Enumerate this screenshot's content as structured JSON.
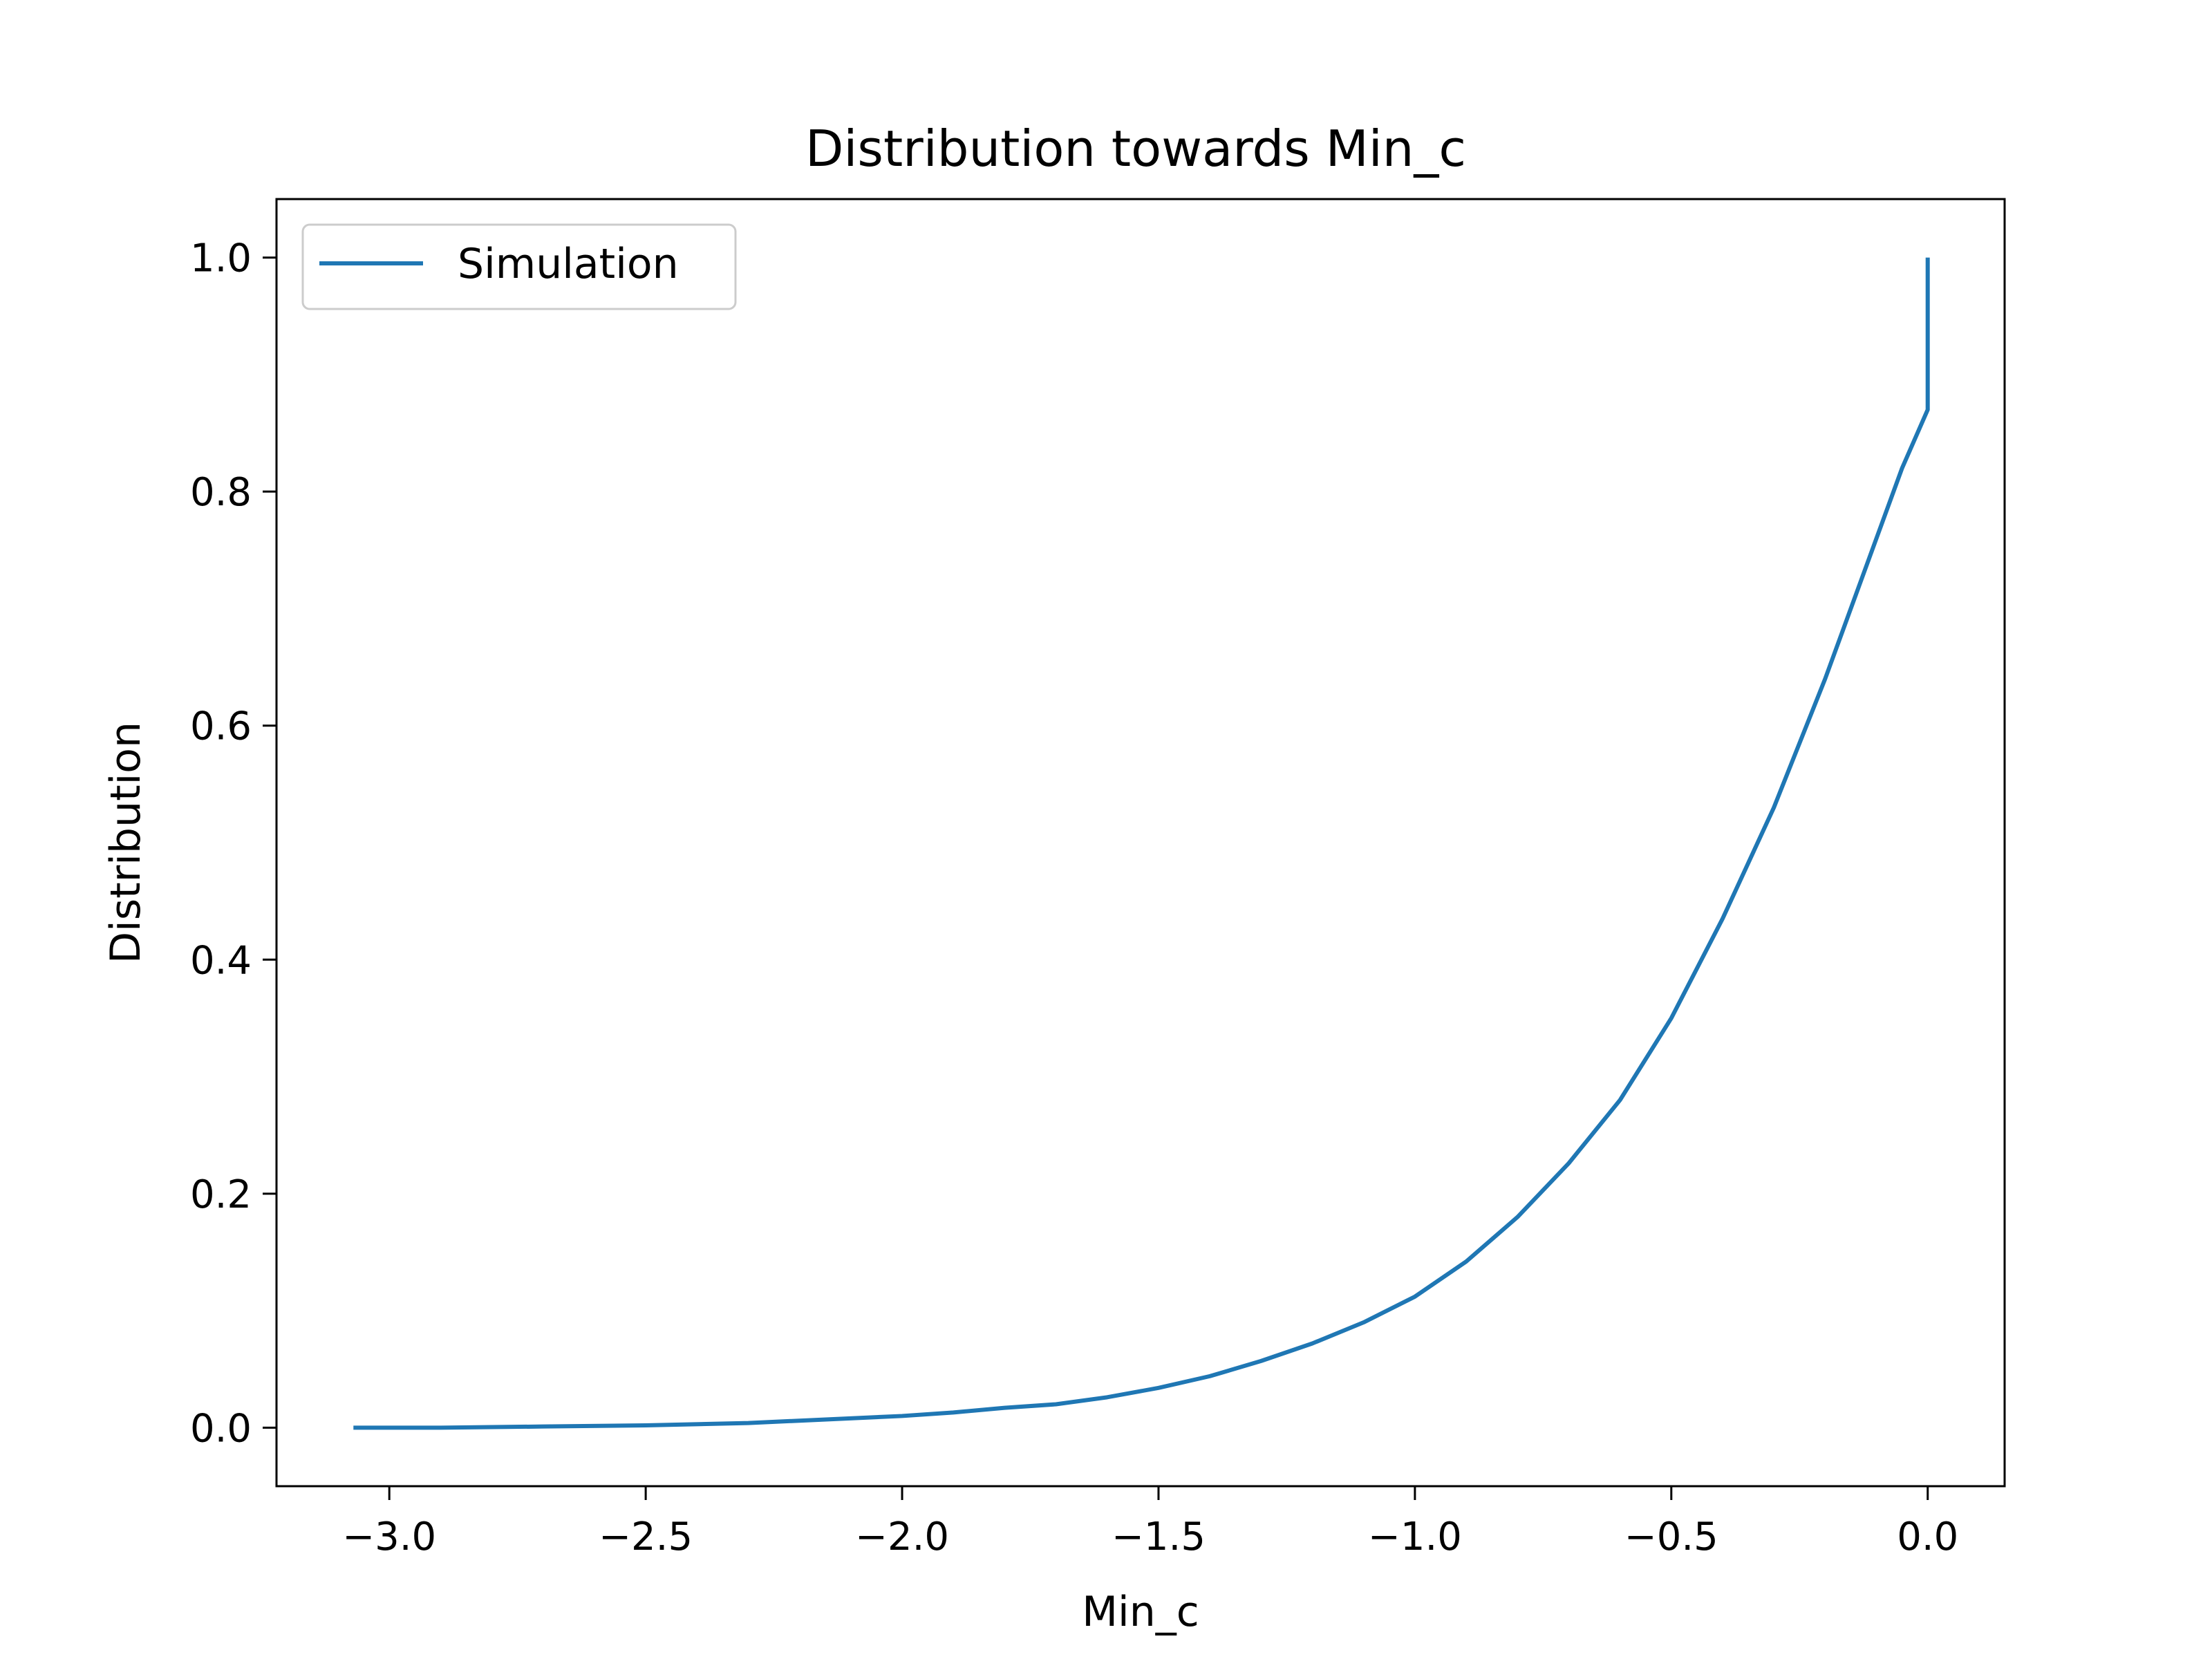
{
  "chart_data": {
    "type": "line",
    "title": "Distribution towards Min_c",
    "xlabel": "Min_c",
    "ylabel": "Distribution",
    "xlim": [
      -3.22,
      0.15
    ],
    "ylim": [
      -0.05,
      1.05
    ],
    "xticks": [
      -3.0,
      -2.5,
      -2.0,
      -1.5,
      -1.0,
      -0.5,
      0.0
    ],
    "xtick_labels": [
      "−3.0",
      "−2.5",
      "−2.0",
      "−1.5",
      "−1.0",
      "−0.5",
      "0.0"
    ],
    "yticks": [
      0.0,
      0.2,
      0.4,
      0.6,
      0.8,
      1.0
    ],
    "ytick_labels": [
      "0.0",
      "0.2",
      "0.4",
      "0.6",
      "0.8",
      "1.0"
    ],
    "grid": false,
    "legend": "upper-left",
    "series": [
      {
        "name": "Simulation",
        "color": "#1f77b4",
        "x": [
          -3.07,
          -2.9,
          -2.7,
          -2.5,
          -2.3,
          -2.2,
          -2.0,
          -1.9,
          -1.8,
          -1.7,
          -1.6,
          -1.5,
          -1.4,
          -1.3,
          -1.2,
          -1.1,
          -1.0,
          -0.9,
          -0.8,
          -0.7,
          -0.6,
          -0.5,
          -0.4,
          -0.3,
          -0.2,
          -0.1,
          -0.05,
          0.0,
          0.0
        ],
        "y": [
          0.0,
          0.0,
          0.001,
          0.002,
          0.004,
          0.006,
          0.01,
          0.013,
          0.017,
          0.02,
          0.026,
          0.034,
          0.044,
          0.057,
          0.072,
          0.09,
          0.112,
          0.142,
          0.18,
          0.226,
          0.28,
          0.35,
          0.435,
          0.53,
          0.64,
          0.76,
          0.82,
          0.87,
          1.0
        ]
      }
    ]
  }
}
